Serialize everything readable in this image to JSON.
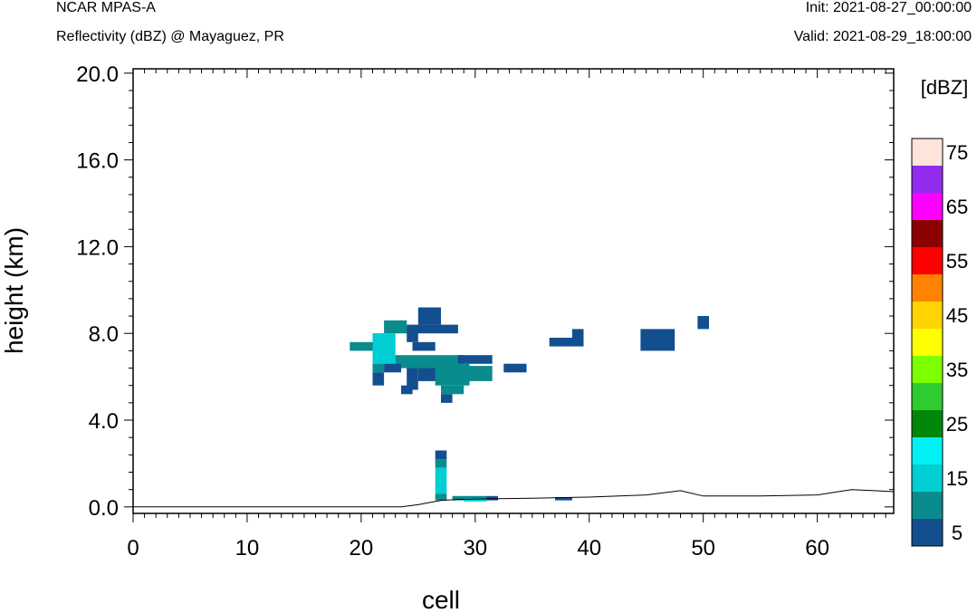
{
  "header": {
    "model": "NCAR MPAS-A",
    "field": "Reflectivity (dBZ) @ Mayaguez, PR",
    "init": "Init: 2021-08-27_00:00:00",
    "valid": "Valid: 2021-08-29_18:00:00"
  },
  "chart_data": {
    "type": "heatmap",
    "title": "Reflectivity (dBZ) @ Mayaguez, PR",
    "xlabel": "cell",
    "ylabel": "height (km)",
    "xlim": [
      0,
      66.7
    ],
    "ylim": [
      -0.3,
      20.2
    ],
    "xticks": [
      "0",
      "10",
      "20",
      "30",
      "40",
      "50",
      "60"
    ],
    "yticks": [
      "0.0",
      "4.0",
      "8.0",
      "12.0",
      "16.0",
      "20.0"
    ],
    "legend": {
      "title": "[dBZ]",
      "placement": "right",
      "labels": [
        "5",
        "15",
        "25",
        "35",
        "45",
        "55",
        "65",
        "75"
      ],
      "levels": [
        5,
        10,
        15,
        20,
        25,
        30,
        35,
        40,
        45,
        50,
        55,
        60,
        65,
        70,
        75
      ],
      "colors": [
        "#134f8f",
        "#0a8b8d",
        "#00ced2",
        "#00f2f5",
        "#00870a",
        "#2fcc2f",
        "#7cff00",
        "#ffff00",
        "#ffd400",
        "#ff8200",
        "#ff0000",
        "#8b0000",
        "#ff00ff",
        "#912bee",
        "#ffe4dc"
      ]
    },
    "cells": [
      {
        "x": [
          25,
          27
        ],
        "y": [
          8.4,
          9.2
        ],
        "dbz": 5
      },
      {
        "x": [
          24,
          28.5
        ],
        "y": [
          8.0,
          8.4
        ],
        "dbz": 5
      },
      {
        "x": [
          22,
          24
        ],
        "y": [
          8.0,
          8.6
        ],
        "dbz": 10
      },
      {
        "x": [
          21,
          22
        ],
        "y": [
          7.6,
          8.0
        ],
        "dbz": 10
      },
      {
        "x": [
          19,
          21
        ],
        "y": [
          7.2,
          7.6
        ],
        "dbz": 10
      },
      {
        "x": [
          21,
          23
        ],
        "y": [
          6.6,
          8.0
        ],
        "dbz": 15
      },
      {
        "x": [
          24,
          25
        ],
        "y": [
          7.6,
          8.2
        ],
        "dbz": 5
      },
      {
        "x": [
          24.5,
          26.5
        ],
        "y": [
          7.2,
          7.6
        ],
        "dbz": 5
      },
      {
        "x": [
          23,
          29
        ],
        "y": [
          6.4,
          7.0
        ],
        "dbz": 10
      },
      {
        "x": [
          28.5,
          31.5
        ],
        "y": [
          6.6,
          7.0
        ],
        "dbz": 5
      },
      {
        "x": [
          21,
          22
        ],
        "y": [
          6.2,
          6.6
        ],
        "dbz": 10
      },
      {
        "x": [
          22,
          23.5
        ],
        "y": [
          6.2,
          6.6
        ],
        "dbz": 5
      },
      {
        "x": [
          21,
          22
        ],
        "y": [
          5.6,
          6.2
        ],
        "dbz": 5
      },
      {
        "x": [
          24,
          25
        ],
        "y": [
          5.4,
          6.4
        ],
        "dbz": 5
      },
      {
        "x": [
          25,
          27
        ],
        "y": [
          5.8,
          6.4
        ],
        "dbz": 5
      },
      {
        "x": [
          26.5,
          29.5
        ],
        "y": [
          5.6,
          6.6
        ],
        "dbz": 10
      },
      {
        "x": [
          29,
          31.5
        ],
        "y": [
          5.8,
          6.5
        ],
        "dbz": 10
      },
      {
        "x": [
          27,
          29
        ],
        "y": [
          5.2,
          5.6
        ],
        "dbz": 10
      },
      {
        "x": [
          23.5,
          24.5
        ],
        "y": [
          5.2,
          5.6
        ],
        "dbz": 5
      },
      {
        "x": [
          27,
          28
        ],
        "y": [
          4.8,
          5.2
        ],
        "dbz": 5
      },
      {
        "x": [
          32.5,
          34.5
        ],
        "y": [
          6.2,
          6.6
        ],
        "dbz": 5
      },
      {
        "x": [
          36.5,
          39.5
        ],
        "y": [
          7.4,
          7.8
        ],
        "dbz": 5
      },
      {
        "x": [
          38.5,
          39.5
        ],
        "y": [
          7.8,
          8.2
        ],
        "dbz": 5
      },
      {
        "x": [
          44.5,
          47.5
        ],
        "y": [
          7.2,
          8.2
        ],
        "dbz": 5
      },
      {
        "x": [
          49.5,
          50.5
        ],
        "y": [
          8.2,
          8.8
        ],
        "dbz": 5
      },
      {
        "x": [
          26.5,
          27.5
        ],
        "y": [
          2.2,
          2.6
        ],
        "dbz": 5
      },
      {
        "x": [
          26.5,
          27.5
        ],
        "y": [
          1.8,
          2.2
        ],
        "dbz": 10
      },
      {
        "x": [
          26.5,
          27.5
        ],
        "y": [
          0.6,
          1.8
        ],
        "dbz": 15
      },
      {
        "x": [
          26.5,
          27.5
        ],
        "y": [
          0.3,
          0.6
        ],
        "dbz": 10
      },
      {
        "x": [
          28,
          31
        ],
        "y": [
          0.3,
          0.5
        ],
        "dbz": 10
      },
      {
        "x": [
          29,
          31
        ],
        "y": [
          0.25,
          0.4
        ],
        "dbz": 15
      },
      {
        "x": [
          31,
          32
        ],
        "y": [
          0.3,
          0.5
        ],
        "dbz": 5
      },
      {
        "x": [
          37,
          38.5
        ],
        "y": [
          0.3,
          0.45
        ],
        "dbz": 5
      }
    ],
    "terrain": {
      "x": [
        0,
        23.5,
        25,
        27,
        29,
        32,
        35,
        40,
        45,
        48,
        50,
        55,
        60,
        63,
        65,
        66.7
      ],
      "y": [
        0,
        0,
        0.1,
        0.3,
        0.35,
        0.38,
        0.4,
        0.45,
        0.55,
        0.75,
        0.5,
        0.5,
        0.55,
        0.8,
        0.75,
        0.7
      ]
    }
  }
}
